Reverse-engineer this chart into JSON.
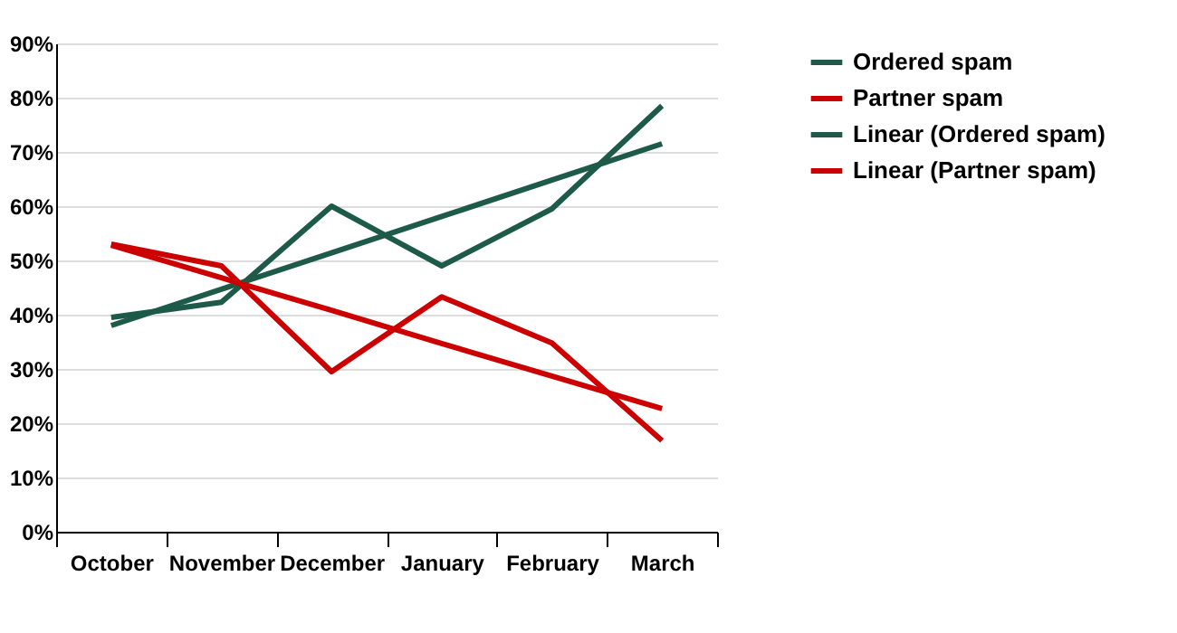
{
  "chart_data": {
    "type": "line",
    "categories": [
      "October",
      "November",
      "December",
      "January",
      "February",
      "March"
    ],
    "series": [
      {
        "name": "Ordered spam",
        "color": "#1e5a48",
        "values": [
          39.5,
          42.3,
          60,
          49,
          59.5,
          78.5
        ]
      },
      {
        "name": "Partner spam",
        "color": "#cc0000",
        "values": [
          53,
          49,
          29.5,
          43.3,
          34.8,
          16.8
        ]
      },
      {
        "name": "Linear (Ordered spam)",
        "color": "#1e5a48",
        "type": "line",
        "x": [
          "October",
          "November",
          "December",
          "January",
          "February",
          "March"
        ],
        "values": [
          38,
          44.7,
          51.4,
          58.1,
          64.8,
          71.5
        ]
      },
      {
        "name": "Linear (Partner spam)",
        "color": "#cc0000",
        "type": "line",
        "x": [
          "October",
          "November",
          "December",
          "January",
          "February",
          "March"
        ],
        "values": [
          52.8,
          46.8,
          40.8,
          34.7,
          28.7,
          22.7
        ]
      }
    ],
    "ylim": [
      0,
      90
    ],
    "yticks": [
      {
        "value": 0,
        "label": "0%"
      },
      {
        "value": 10,
        "label": "10%"
      },
      {
        "value": 20,
        "label": "20%"
      },
      {
        "value": 30,
        "label": "30%"
      },
      {
        "value": 40,
        "label": "40%"
      },
      {
        "value": 50,
        "label": "50%"
      },
      {
        "value": 60,
        "label": "60%"
      },
      {
        "value": 70,
        "label": "70%"
      },
      {
        "value": 80,
        "label": "80%"
      },
      {
        "value": 90,
        "label": "90%"
      }
    ],
    "grid": "y",
    "legend": "right",
    "marker": "none",
    "line_style": "solid"
  }
}
